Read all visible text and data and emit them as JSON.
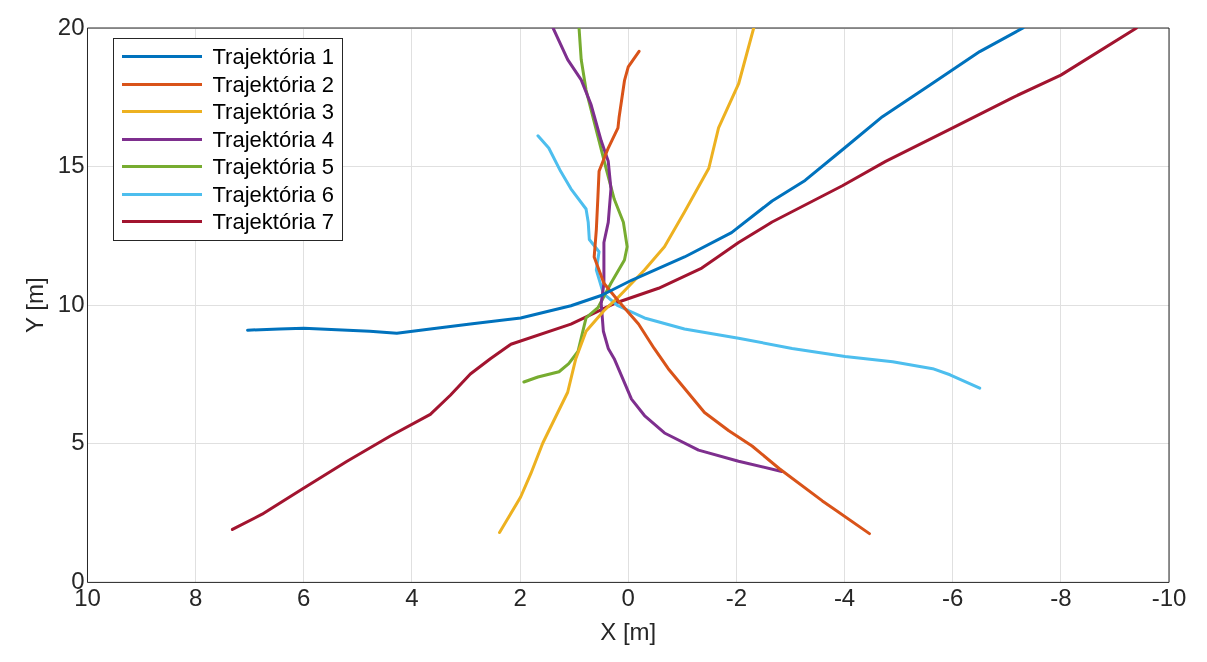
{
  "chart_data": {
    "type": "line",
    "xlabel": "X [m]",
    "ylabel": "Y [m]",
    "xlim": [
      10,
      -10
    ],
    "ylim": [
      0,
      20
    ],
    "xticks": [
      10,
      8,
      6,
      4,
      2,
      0,
      -2,
      -4,
      -6,
      -8,
      -10
    ],
    "yticks": [
      0,
      5,
      10,
      15,
      20
    ],
    "grid": true,
    "legend": "top left",
    "marker": "none",
    "line_style": "solid",
    "series": [
      {
        "name": "Trajektória 1",
        "color": "#0072bd",
        "x": [
          7.04,
          6.45,
          6.0,
          4.78,
          4.28,
          3.66,
          2.92,
          1.99,
          1.06,
          0.5,
          -0.06,
          -1.04,
          -1.91,
          -2.66,
          -3.27,
          -4.0,
          -4.7,
          -5.58,
          -6.5,
          -7.3
        ],
        "values": [
          9.1,
          9.14,
          9.17,
          9.06,
          8.99,
          9.14,
          9.32,
          9.54,
          9.98,
          10.35,
          10.9,
          11.74,
          12.62,
          13.76,
          14.5,
          15.67,
          16.8,
          17.94,
          19.15,
          20
        ]
      },
      {
        "name": "Trajektória 2",
        "color": "#d95319",
        "x": [
          -0.2,
          0,
          0.07,
          0.17,
          0.19,
          0.37,
          0.54,
          0.56,
          0.59,
          0.63,
          0.45,
          0.19,
          -0.19,
          -0.48,
          -0.74,
          -1.41,
          -1.86,
          -2.29,
          -2.79,
          -3.59,
          -4.46
        ],
        "values": [
          19.16,
          18.6,
          18.1,
          16.77,
          16.4,
          15.67,
          14.83,
          13.95,
          12.73,
          11.74,
          10.79,
          10.17,
          9.32,
          8.44,
          7.71,
          6.13,
          5.47,
          4.92,
          4.11,
          2.94,
          1.76
        ]
      },
      {
        "name": "Trajektória 3",
        "color": "#edb120",
        "x": [
          2.38,
          1.99,
          1.8,
          1.58,
          1.12,
          0.97,
          0.78,
          0.45,
          0.19,
          -0.3,
          -0.67,
          -1.04,
          -1.49,
          -1.67,
          -2.04,
          -2.32
        ],
        "values": [
          1.8,
          3.08,
          3.93,
          5.03,
          6.86,
          8.07,
          9.06,
          9.8,
          10.28,
          11.27,
          12.11,
          13.36,
          14.94,
          16.4,
          17.98,
          20
        ]
      },
      {
        "name": "Trajektória 4",
        "color": "#7e2f8e",
        "x": [
          1.39,
          1.12,
          0.87,
          0.69,
          0.5,
          0.37,
          0.32,
          0.37,
          0.45,
          0.45,
          0.5,
          0.46,
          0.37,
          0.26,
          -0.06,
          -0.3,
          -0.67,
          -1.3,
          -2.04,
          -2.84
        ],
        "values": [
          20,
          18.86,
          18.13,
          17.25,
          15.93,
          15.19,
          14.2,
          12.99,
          12.26,
          10.79,
          10.06,
          9.06,
          8.44,
          8.07,
          6.61,
          6.02,
          5.39,
          4.77,
          4.37,
          4.0
        ]
      },
      {
        "name": "Trajektória 5",
        "color": "#77ac30",
        "x": [
          0.91,
          0.87,
          0.78,
          0.65,
          0.54,
          0.41,
          0.26,
          0.09,
          0.02,
          0.07,
          0.32,
          0.56,
          0.78,
          0.93,
          1.1,
          1.28,
          1.67,
          1.93
        ],
        "values": [
          20,
          18.86,
          17.76,
          16.77,
          15.93,
          14.94,
          13.83,
          12.99,
          12.11,
          11.63,
          10.79,
          9.91,
          9.54,
          8.33,
          7.89,
          7.6,
          7.41,
          7.23
        ]
      },
      {
        "name": "Trajektória 6",
        "color": "#4dbeee",
        "x": [
          1.67,
          1.47,
          1.25,
          1.06,
          0.78,
          0.74,
          0.72,
          0.54,
          0.59,
          0.46,
          0.19,
          -0.3,
          -1.04,
          -2.04,
          -3.03,
          -4.01,
          -4.89,
          -5.63,
          -5.95,
          -6.5
        ],
        "values": [
          16.11,
          15.67,
          14.83,
          14.2,
          13.47,
          12.99,
          12.37,
          11.93,
          11.27,
          10.42,
          9.98,
          9.54,
          9.14,
          8.81,
          8.44,
          8.15,
          7.96,
          7.71,
          7.49,
          7.01
        ]
      },
      {
        "name": "Trajektória 7",
        "color": "#a2142f",
        "x": [
          7.32,
          6.77,
          6.02,
          5.2,
          4.4,
          3.66,
          3.29,
          2.92,
          2.55,
          2.17,
          1.06,
          0.26,
          -0.56,
          -1.36,
          -2.04,
          -2.66,
          -3.96,
          -4.76,
          -6.0,
          -7.12,
          -8.0,
          -9.4
        ],
        "values": [
          1.91,
          2.46,
          3.38,
          4.37,
          5.28,
          6.06,
          6.75,
          7.52,
          8.07,
          8.59,
          9.32,
          10.06,
          10.61,
          11.34,
          12.26,
          13.0,
          14.31,
          15.19,
          16.4,
          17.5,
          18.3,
          20
        ]
      }
    ]
  }
}
